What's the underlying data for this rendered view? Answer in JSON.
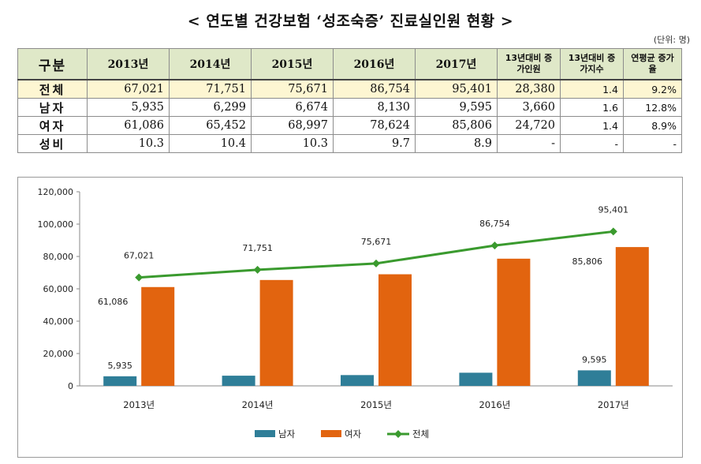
{
  "title": "< 연도별 건강보험 ‘성조숙증’ 진료실인원 현황 >",
  "unit": "(단위: 명)",
  "table": {
    "headers": [
      "구분",
      "2013년",
      "2014년",
      "2015년",
      "2016년",
      "2017년",
      "13년대비 증가인원",
      "13년대비 증가지수",
      "연평균 증가율"
    ],
    "rows": [
      {
        "label": "전체",
        "cells": [
          "67,021",
          "71,751",
          "75,671",
          "86,754",
          "95,401",
          "28,380",
          "1.4",
          "9.2%"
        ]
      },
      {
        "label": "남자",
        "cells": [
          "5,935",
          "6,299",
          "6,674",
          "8,130",
          "9,595",
          "3,660",
          "1.6",
          "12.8%"
        ]
      },
      {
        "label": "여자",
        "cells": [
          "61,086",
          "65,452",
          "68,997",
          "78,624",
          "85,806",
          "24,720",
          "1.4",
          "8.9%"
        ]
      },
      {
        "label": "성비",
        "cells": [
          "10.3",
          "10.4",
          "10.3",
          "9.7",
          "8.9",
          "-",
          "-",
          "-"
        ]
      }
    ]
  },
  "chart_data": {
    "type": "bar",
    "categories": [
      "2013년",
      "2014년",
      "2015년",
      "2016년",
      "2017년"
    ],
    "series": [
      {
        "name": "남자",
        "type": "bar",
        "color": "#2f7e98",
        "values": [
          5935,
          6299,
          6674,
          8130,
          9595
        ]
      },
      {
        "name": "여자",
        "type": "bar",
        "color": "#e2640f",
        "values": [
          61086,
          65452,
          68997,
          78624,
          85806
        ]
      },
      {
        "name": "전체",
        "type": "line",
        "color": "#3a9a2e",
        "values": [
          67021,
          71751,
          75671,
          86754,
          95401
        ]
      }
    ],
    "data_labels": {
      "남자": [
        "5,935",
        "",
        "",
        "",
        "9,595"
      ],
      "여자": [
        "61,086",
        "",
        "",
        "",
        "85,806"
      ],
      "전체": [
        "67,021",
        "71,751",
        "75,671",
        "86,754",
        "95,401"
      ]
    },
    "yticks": [
      "0",
      "20,000",
      "40,000",
      "60,000",
      "80,000",
      "100,000",
      "120,000"
    ],
    "ylim": [
      0,
      120000
    ],
    "legend": "bottom",
    "grid": false
  }
}
